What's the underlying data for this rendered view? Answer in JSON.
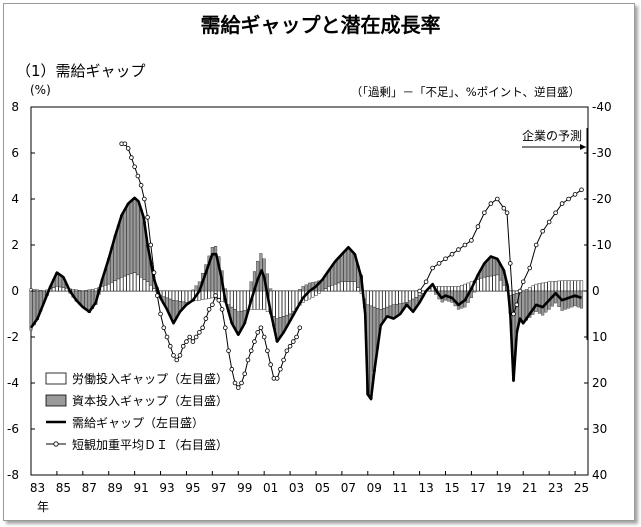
{
  "chart_data": {
    "type": "bar",
    "title": "需給ギャップと潜在成長率",
    "subtitle": "（1）需給ギャップ",
    "ylabel_left": "(%)",
    "ylabel_right": "（「過剰」－「不足」、%ポイント、逆目盛）",
    "forecast_label": "企業の予測",
    "year_suffix": "年",
    "x_tick_labels": [
      "83",
      "85",
      "87",
      "89",
      "91",
      "93",
      "95",
      "97",
      "99",
      "01",
      "03",
      "05",
      "07",
      "09",
      "11",
      "13",
      "15",
      "17",
      "19",
      "21",
      "23",
      "25"
    ],
    "left_axis": {
      "range": [
        -8,
        8
      ],
      "ticks": [
        "8",
        "6",
        "4",
        "2",
        "0",
        "-2",
        "-4",
        "-6",
        "-8"
      ]
    },
    "right_axis": {
      "range": [
        40,
        -40
      ],
      "inverted": true,
      "ticks": [
        "-40",
        "-30",
        "-20",
        "-10",
        "0",
        "10",
        "20",
        "30",
        "40"
      ]
    },
    "legend": [
      "労働投入ギャップ（左目盛）",
      "資本投入ギャップ（左目盛）",
      "需給ギャップ（左目盛）",
      "短観加重平均ＤＩ（右目盛）"
    ],
    "colors": {
      "labor": "#ffffff",
      "capital": "#9a9a9a",
      "gap": "#000000",
      "di": "#000000"
    },
    "gap_series": [
      [
        1983.0,
        -1.6
      ],
      [
        1983.5,
        -1.2
      ],
      [
        1984.0,
        -0.5
      ],
      [
        1984.5,
        0.2
      ],
      [
        1985.0,
        0.8
      ],
      [
        1985.5,
        0.6
      ],
      [
        1986.0,
        0.0
      ],
      [
        1986.5,
        -0.4
      ],
      [
        1987.0,
        -0.7
      ],
      [
        1987.5,
        -0.9
      ],
      [
        1988.0,
        -0.5
      ],
      [
        1988.5,
        0.5
      ],
      [
        1989.0,
        1.4
      ],
      [
        1989.5,
        2.4
      ],
      [
        1990.0,
        3.3
      ],
      [
        1990.5,
        3.8
      ],
      [
        1991.0,
        4.05
      ],
      [
        1991.3,
        3.9
      ],
      [
        1991.7,
        3.2
      ],
      [
        1992.0,
        2.0
      ],
      [
        1992.5,
        0.5
      ],
      [
        1993.0,
        -0.3
      ],
      [
        1993.5,
        -0.8
      ],
      [
        1994.0,
        -1.4
      ],
      [
        1994.5,
        -0.9
      ],
      [
        1995.0,
        -0.6
      ],
      [
        1995.5,
        -0.4
      ],
      [
        1996.0,
        0.0
      ],
      [
        1996.5,
        0.8
      ],
      [
        1997.0,
        1.6
      ],
      [
        1997.3,
        1.6
      ],
      [
        1997.7,
        0.6
      ],
      [
        1998.0,
        -0.4
      ],
      [
        1998.5,
        -1.4
      ],
      [
        1999.0,
        -1.9
      ],
      [
        1999.5,
        -1.4
      ],
      [
        2000.0,
        -0.4
      ],
      [
        2000.5,
        0.5
      ],
      [
        2000.8,
        0.9
      ],
      [
        2001.0,
        0.6
      ],
      [
        2001.5,
        -0.9
      ],
      [
        2002.0,
        -2.2
      ],
      [
        2002.5,
        -1.8
      ],
      [
        2003.0,
        -1.3
      ],
      [
        2003.5,
        -0.8
      ],
      [
        2004.0,
        -0.3
      ],
      [
        2004.5,
        0.0
      ],
      [
        2005.0,
        0.2
      ],
      [
        2005.5,
        0.5
      ],
      [
        2006.0,
        0.9
      ],
      [
        2006.5,
        1.3
      ],
      [
        2007.0,
        1.6
      ],
      [
        2007.5,
        1.9
      ],
      [
        2008.0,
        1.6
      ],
      [
        2008.5,
        0.6
      ],
      [
        2008.8,
        -1.0
      ],
      [
        2009.0,
        -4.5
      ],
      [
        2009.25,
        -4.7
      ],
      [
        2009.5,
        -3.5
      ],
      [
        2009.75,
        -2.5
      ],
      [
        2010.0,
        -1.5
      ],
      [
        2010.5,
        -1.1
      ],
      [
        2011.0,
        -1.2
      ],
      [
        2011.5,
        -1.0
      ],
      [
        2012.0,
        -0.6
      ],
      [
        2012.5,
        -0.9
      ],
      [
        2013.0,
        -0.5
      ],
      [
        2013.5,
        0.0
      ],
      [
        2014.0,
        0.3
      ],
      [
        2014.3,
        0.0
      ],
      [
        2014.7,
        -0.3
      ],
      [
        2015.0,
        -0.2
      ],
      [
        2015.5,
        -0.3
      ],
      [
        2016.0,
        -0.6
      ],
      [
        2016.5,
        -0.4
      ],
      [
        2017.0,
        0.1
      ],
      [
        2017.5,
        0.7
      ],
      [
        2018.0,
        1.2
      ],
      [
        2018.5,
        1.5
      ],
      [
        2019.0,
        1.4
      ],
      [
        2019.5,
        0.9
      ],
      [
        2019.8,
        0.2
      ],
      [
        2020.0,
        -1.0
      ],
      [
        2020.25,
        -3.9
      ],
      [
        2020.5,
        -1.8
      ],
      [
        2020.75,
        -1.2
      ],
      [
        2021.0,
        -1.4
      ],
      [
        2021.5,
        -1.0
      ],
      [
        2022.0,
        -0.6
      ],
      [
        2022.5,
        -0.7
      ],
      [
        2023.0,
        -0.4
      ],
      [
        2023.5,
        -0.1
      ],
      [
        2024.0,
        -0.4
      ],
      [
        2024.5,
        -0.3
      ],
      [
        2025.0,
        -0.2
      ],
      [
        2025.5,
        -0.3
      ]
    ],
    "labor_series": [
      [
        1983.0,
        0.1
      ],
      [
        1984.0,
        0.0
      ],
      [
        1985.0,
        0.2
      ],
      [
        1986.0,
        0.1
      ],
      [
        1987.0,
        0.0
      ],
      [
        1988.0,
        0.1
      ],
      [
        1989.0,
        0.3
      ],
      [
        1990.0,
        0.6
      ],
      [
        1991.0,
        0.8
      ],
      [
        1992.0,
        0.4
      ],
      [
        1993.0,
        -0.2
      ],
      [
        1994.0,
        -0.4
      ],
      [
        1995.0,
        -0.5
      ],
      [
        1996.0,
        -0.4
      ],
      [
        1997.0,
        -0.3
      ],
      [
        1998.0,
        -0.5
      ],
      [
        1999.0,
        -0.9
      ],
      [
        2000.0,
        -0.8
      ],
      [
        2001.0,
        -0.8
      ],
      [
        2002.0,
        -1.2
      ],
      [
        2003.0,
        -1.0
      ],
      [
        2004.0,
        -0.5
      ],
      [
        2005.0,
        -0.2
      ],
      [
        2006.0,
        0.2
      ],
      [
        2007.0,
        0.4
      ],
      [
        2008.0,
        0.4
      ],
      [
        2009.0,
        -0.6
      ],
      [
        2010.0,
        -0.8
      ],
      [
        2011.0,
        -0.6
      ],
      [
        2012.0,
        -0.5
      ],
      [
        2013.0,
        -0.2
      ],
      [
        2014.0,
        0.2
      ],
      [
        2015.0,
        0.2
      ],
      [
        2016.0,
        0.2
      ],
      [
        2017.0,
        0.4
      ],
      [
        2018.0,
        0.6
      ],
      [
        2019.0,
        0.7
      ],
      [
        2020.0,
        -0.2
      ],
      [
        2021.0,
        0.0
      ],
      [
        2022.0,
        0.3
      ],
      [
        2023.0,
        0.4
      ],
      [
        2024.0,
        0.45
      ],
      [
        2025.0,
        0.45
      ],
      [
        2025.5,
        0.45
      ]
    ],
    "di_series": [
      [
        1990.0,
        -32
      ],
      [
        1990.25,
        -32
      ],
      [
        1990.5,
        -31
      ],
      [
        1990.75,
        -29
      ],
      [
        1991.0,
        -27
      ],
      [
        1991.25,
        -25
      ],
      [
        1991.5,
        -23
      ],
      [
        1991.75,
        -20
      ],
      [
        1992.0,
        -16
      ],
      [
        1992.25,
        -10
      ],
      [
        1992.5,
        -4
      ],
      [
        1992.75,
        1
      ],
      [
        1993.0,
        5
      ],
      [
        1993.25,
        8
      ],
      [
        1993.5,
        10
      ],
      [
        1993.75,
        12
      ],
      [
        1994.0,
        14
      ],
      [
        1994.25,
        15
      ],
      [
        1994.5,
        14
      ],
      [
        1994.75,
        12
      ],
      [
        1995.0,
        11
      ],
      [
        1995.25,
        10
      ],
      [
        1995.5,
        11
      ],
      [
        1995.75,
        10
      ],
      [
        1996.0,
        9
      ],
      [
        1996.25,
        8
      ],
      [
        1996.5,
        6
      ],
      [
        1996.75,
        4
      ],
      [
        1997.0,
        3
      ],
      [
        1997.25,
        1
      ],
      [
        1997.5,
        2
      ],
      [
        1997.75,
        4
      ],
      [
        1998.0,
        8
      ],
      [
        1998.25,
        13
      ],
      [
        1998.5,
        17
      ],
      [
        1998.75,
        20
      ],
      [
        1999.0,
        21
      ],
      [
        1999.25,
        20
      ],
      [
        1999.5,
        18
      ],
      [
        1999.75,
        15
      ],
      [
        2000.0,
        13
      ],
      [
        2000.25,
        11
      ],
      [
        2000.5,
        9
      ],
      [
        2000.75,
        8
      ],
      [
        2001.0,
        10
      ],
      [
        2001.25,
        13
      ],
      [
        2001.5,
        16
      ],
      [
        2001.75,
        19
      ],
      [
        2002.0,
        19
      ],
      [
        2002.25,
        17
      ],
      [
        2002.5,
        15
      ],
      [
        2002.75,
        13
      ],
      [
        2003.0,
        12
      ],
      [
        2003.25,
        11
      ],
      [
        2003.5,
        10
      ],
      [
        2003.75,
        8
      ]
    ],
    "di_series_2": [
      [
        2013.0,
        0
      ],
      [
        2013.5,
        -2
      ],
      [
        2014.0,
        -5
      ],
      [
        2014.5,
        -6
      ],
      [
        2015.0,
        -7
      ],
      [
        2015.5,
        -8
      ],
      [
        2016.0,
        -9
      ],
      [
        2016.5,
        -10
      ],
      [
        2017.0,
        -11
      ],
      [
        2017.5,
        -14
      ],
      [
        2018.0,
        -17
      ],
      [
        2018.5,
        -19
      ],
      [
        2019.0,
        -20
      ],
      [
        2019.5,
        -18
      ],
      [
        2019.75,
        -17
      ],
      [
        2020.0,
        -6
      ],
      [
        2020.25,
        5
      ],
      [
        2020.5,
        3
      ],
      [
        2020.75,
        0
      ],
      [
        2021.0,
        -2
      ],
      [
        2021.5,
        -5
      ],
      [
        2022.0,
        -10
      ],
      [
        2022.5,
        -13
      ],
      [
        2023.0,
        -15
      ],
      [
        2023.5,
        -17
      ],
      [
        2024.0,
        -19
      ],
      [
        2024.5,
        -20
      ],
      [
        2025.0,
        -21
      ],
      [
        2025.5,
        -22
      ]
    ]
  }
}
